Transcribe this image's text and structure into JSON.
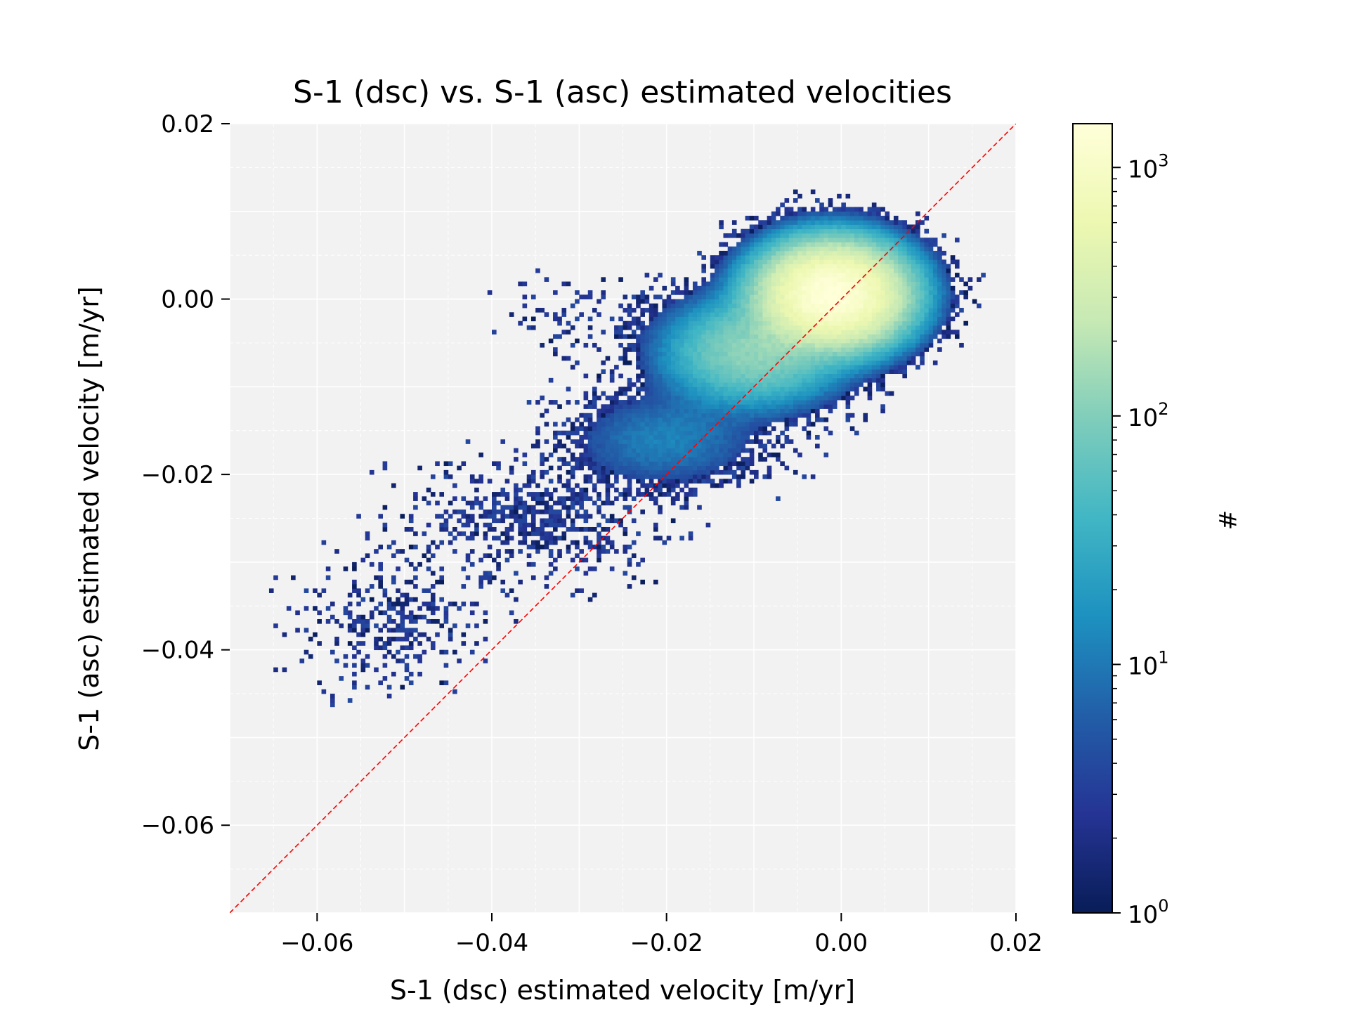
{
  "chart_data": {
    "type": "heatmap",
    "title": "S-1 (dsc) vs. S-1 (asc) estimated velocities",
    "xlabel": "S-1 (dsc) estimated velocity [m/yr]",
    "ylabel": "S-1 (asc) estimated velocity [m/yr]",
    "xlim": [
      -0.07,
      0.02
    ],
    "ylim": [
      -0.07,
      0.02
    ],
    "xticks": [
      -0.06,
      -0.04,
      -0.02,
      0.0,
      0.02
    ],
    "xtick_labels": [
      "−0.06",
      "−0.04",
      "−0.02",
      "0.00",
      "0.02"
    ],
    "yticks": [
      -0.06,
      -0.04,
      -0.02,
      0.0,
      0.02
    ],
    "ytick_labels": [
      "−0.06",
      "−0.04",
      "−0.02",
      "0.00",
      "0.02"
    ],
    "grid": true,
    "reference_line": {
      "type": "identity",
      "color": "#ff0000",
      "style": "dashed"
    },
    "density_core": {
      "peak": [
        -0.001,
        0.0005
      ],
      "count_peak": 1500,
      "description_axis": "elongated along main trend"
    },
    "clusters": [
      {
        "x": -0.001,
        "y": 0.0005,
        "sx": 0.004,
        "sy": 0.0028,
        "weight": 1500
      },
      {
        "x": -0.01,
        "y": -0.006,
        "sx": 0.005,
        "sy": 0.003,
        "weight": 120
      },
      {
        "x": -0.02,
        "y": -0.016,
        "sx": 0.006,
        "sy": 0.003,
        "weight": 12
      },
      {
        "x": -0.035,
        "y": -0.025,
        "sx": 0.008,
        "sy": 0.004,
        "weight": 3
      },
      {
        "x": -0.052,
        "y": -0.037,
        "sx": 0.006,
        "sy": 0.004,
        "weight": 2
      },
      {
        "x": -0.03,
        "y": -0.002,
        "sx": 0.005,
        "sy": 0.003,
        "weight": 1
      }
    ],
    "colorbar": {
      "label": "#",
      "scale": "log",
      "range": [
        1,
        1500
      ],
      "ticks": [
        1,
        10,
        100,
        1000
      ],
      "tick_bases": [
        "10",
        "10",
        "10",
        "10"
      ],
      "tick_exponents": [
        "0",
        "1",
        "2",
        "3"
      ],
      "colormap": "YlGnBu_r",
      "colors": [
        "#081d58",
        "#253494",
        "#225ea8",
        "#1d91c0",
        "#41b6c4",
        "#7fcdbb",
        "#c7e9b4",
        "#edf8b1",
        "#ffffd9"
      ]
    },
    "background_color": "#f2f2f2"
  }
}
